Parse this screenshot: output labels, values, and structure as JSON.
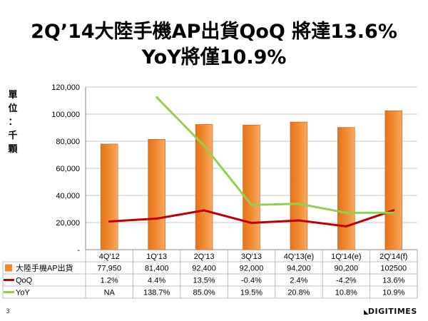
{
  "title_line1": "2Q’14大陸手機AP出貨QoQ 將達13.6%",
  "title_line2": "YoY將僅10.9%",
  "y_unit_chars": [
    "單",
    "位",
    "：",
    "千",
    "顆"
  ],
  "page_number": "3",
  "logo_mark": "◣",
  "logo_text": "DIGITIMES",
  "chart_data": {
    "type": "bar",
    "categories": [
      "4Q'12",
      "1Q'13",
      "2Q'13",
      "3Q'13",
      "4Q'13(e)",
      "1Q'14(e)",
      "2Q'14(f)"
    ],
    "ylim": [
      0,
      120000
    ],
    "y_ticks": [
      "-",
      "20,000",
      "40,000",
      "60,000",
      "80,000",
      "100,000",
      "120,000"
    ],
    "grid": true,
    "legend": "table-below",
    "series": [
      {
        "name": "大陸手機AP出貨",
        "kind": "bar",
        "color": "#F0892E",
        "values": [
          77950,
          81400,
          92400,
          92000,
          94200,
          90200,
          102500
        ],
        "labels": [
          "77,950",
          "81,400",
          "92,400",
          "92,000",
          "94,200",
          "90,200",
          "102500"
        ]
      },
      {
        "name": "QoQ",
        "kind": "line",
        "color": "#C00000",
        "values": [
          1.2,
          4.4,
          13.5,
          -0.4,
          2.4,
          -4.2,
          13.6
        ],
        "labels": [
          "1.2%",
          "4.4%",
          "13.5%",
          "-0.4%",
          "2.4%",
          "-4.2%",
          "13.6%"
        ]
      },
      {
        "name": "YoY",
        "kind": "line",
        "color": "#92D050",
        "values": [
          null,
          138.7,
          85.0,
          19.5,
          20.8,
          10.8,
          10.9
        ],
        "labels": [
          "NA",
          "138.7%",
          "85.0%",
          "19.5%",
          "20.8%",
          "10.8%",
          "10.9%"
        ]
      }
    ]
  }
}
